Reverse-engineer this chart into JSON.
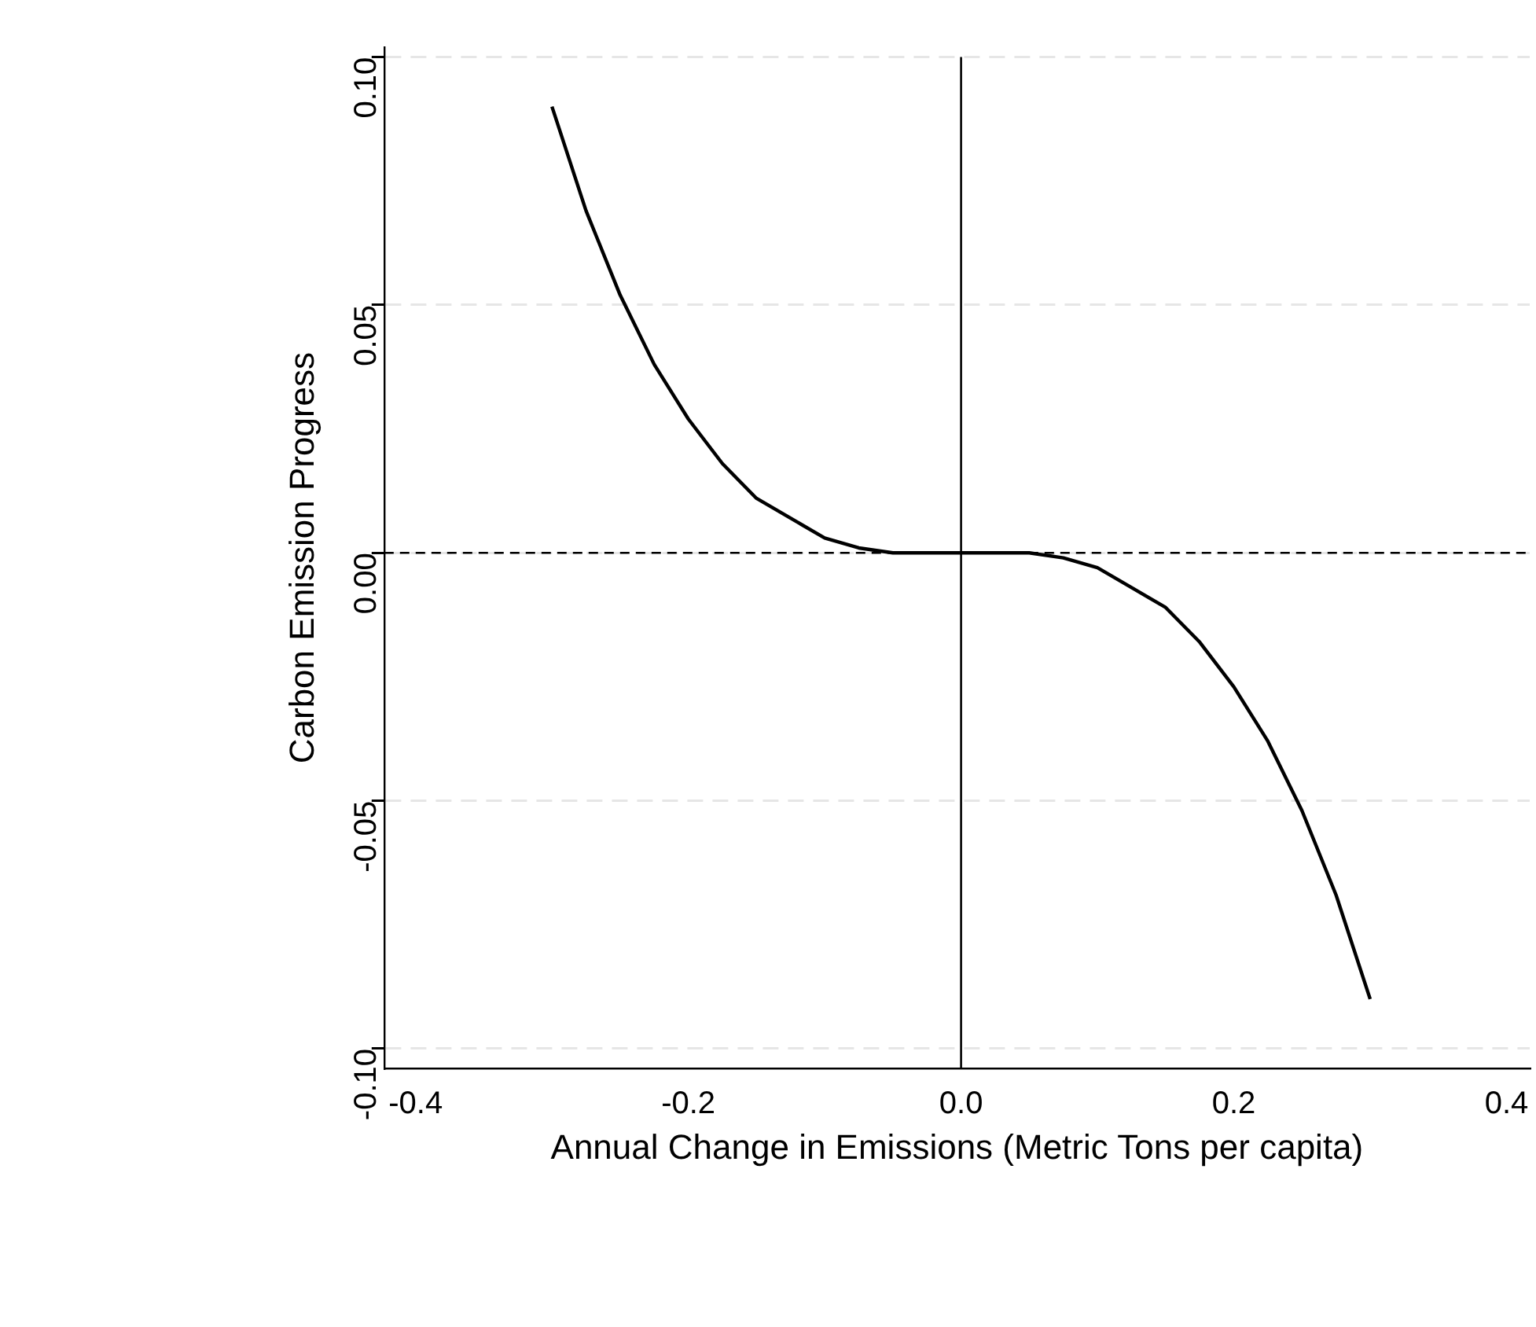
{
  "chart_data": {
    "type": "line",
    "xlabel": "Annual Change in Emissions (Metric Tons per capita)",
    "ylabel": "Carbon Emission Progress",
    "x": [
      -0.3,
      -0.275,
      -0.25,
      -0.225,
      -0.2,
      -0.175,
      -0.15,
      -0.125,
      -0.1,
      -0.075,
      -0.05,
      -0.025,
      0,
      0.025,
      0.05,
      0.075,
      0.1,
      0.125,
      0.15,
      0.175,
      0.2,
      0.225,
      0.25,
      0.275,
      0.3
    ],
    "series": [
      {
        "color": "#000000",
        "values": [
          0.09,
          0.069,
          0.052,
          0.038,
          0.027,
          0.018,
          0.011,
          0.007,
          0.003,
          0.001,
          0,
          0,
          0,
          0,
          0,
          -0.001,
          -0.003,
          -0.007,
          -0.011,
          -0.018,
          -0.027,
          -0.038,
          -0.052,
          -0.069,
          -0.09
        ]
      }
    ],
    "xlim": [
      -0.423,
      0.417
    ],
    "ylim": [
      -0.104,
      0.102
    ],
    "xticks": [
      {
        "value": -0.4,
        "label": "-0.4"
      },
      {
        "value": -0.2,
        "label": "-0.2"
      },
      {
        "value": 0,
        "label": "0.0"
      },
      {
        "value": 0.2,
        "label": "0.2"
      },
      {
        "value": 0.4,
        "label": "0.4"
      }
    ],
    "yticks": [
      {
        "value": -0.1,
        "label": "-0.10"
      },
      {
        "value": -0.05,
        "label": "-0.05"
      },
      {
        "value": 0,
        "label": "0.00"
      },
      {
        "value": 0.05,
        "label": "0.05"
      },
      {
        "value": 0.1,
        "label": "0.10"
      }
    ],
    "grid": "y",
    "legend": false,
    "marker": "none",
    "line_style": "solid",
    "ref_lines": [
      {
        "axis": "x",
        "value": 0,
        "color": "#000000",
        "line_style": "solid"
      },
      {
        "axis": "y",
        "value": 0,
        "color": "#000000",
        "line_style": "dashed"
      }
    ]
  }
}
